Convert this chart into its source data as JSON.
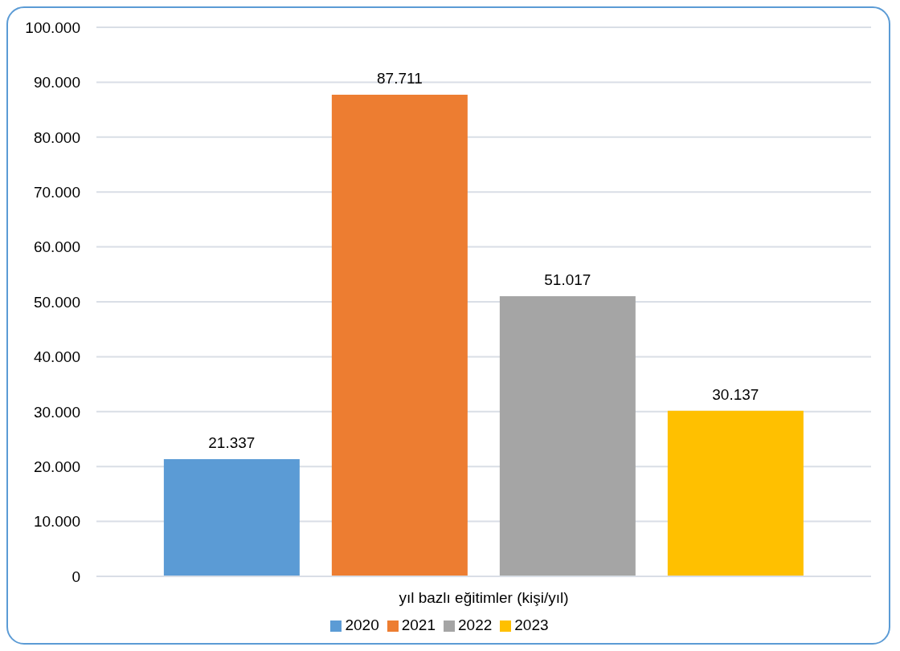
{
  "chart_data": {
    "type": "bar",
    "categories": [
      "yıl bazlı eğitimler (kişi/yıl)"
    ],
    "series": [
      {
        "name": "2020",
        "color": "#5b9bd5",
        "values": [
          21337
        ],
        "value_labels": [
          "21.337"
        ]
      },
      {
        "name": "2021",
        "color": "#ed7d31",
        "values": [
          87711
        ],
        "value_labels": [
          "87.711"
        ]
      },
      {
        "name": "2022",
        "color": "#a5a5a5",
        "values": [
          51017
        ],
        "value_labels": [
          "51.017"
        ]
      },
      {
        "name": "2023",
        "color": "#ffc000",
        "values": [
          30137
        ],
        "value_labels": [
          "30.137"
        ]
      }
    ],
    "ylim": [
      0,
      100000
    ],
    "yticks": [
      {
        "value": 0,
        "label": "0"
      },
      {
        "value": 10000,
        "label": "10.000"
      },
      {
        "value": 20000,
        "label": "20.000"
      },
      {
        "value": 30000,
        "label": "30.000"
      },
      {
        "value": 40000,
        "label": "40.000"
      },
      {
        "value": 50000,
        "label": "50.000"
      },
      {
        "value": 60000,
        "label": "60.000"
      },
      {
        "value": 70000,
        "label": "70.000"
      },
      {
        "value": 80000,
        "label": "80.000"
      },
      {
        "value": 90000,
        "label": "90.000"
      },
      {
        "value": 100000,
        "label": "100.000"
      }
    ],
    "grid": "y",
    "legend": "bottom"
  }
}
